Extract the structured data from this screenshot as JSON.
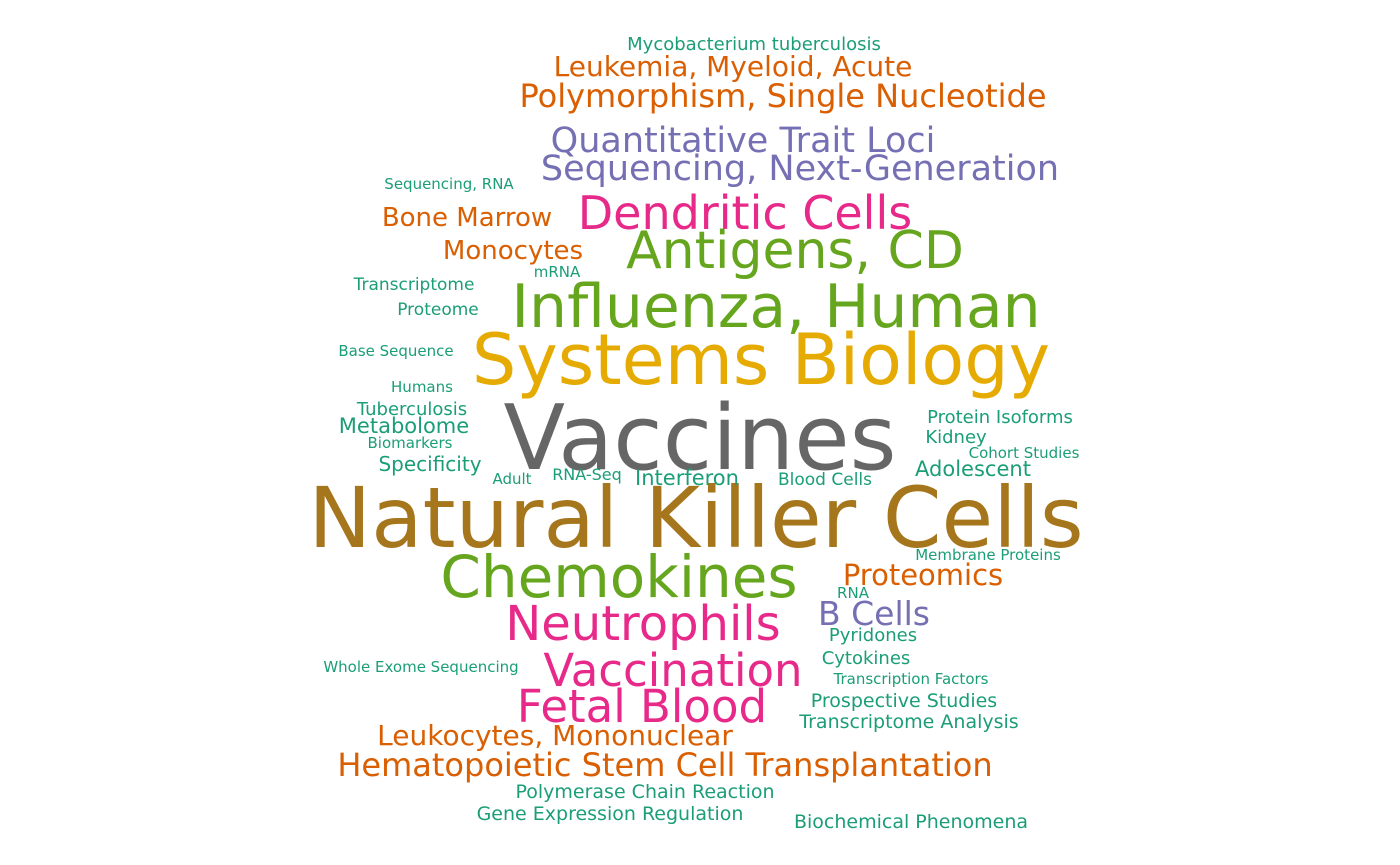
{
  "colors": {
    "teal": "#1b9e77",
    "orange": "#d95f02",
    "purple": "#7570b3",
    "pink": "#e7298a",
    "green": "#66a61e",
    "yellow": "#e6ab02",
    "brown": "#a6761d",
    "gray": "#666666"
  },
  "words": [
    {
      "text": "Natural Killer Cells",
      "color": "brown"
    },
    {
      "text": "Vaccines",
      "color": "gray"
    },
    {
      "text": "Systems Biology",
      "color": "yellow"
    },
    {
      "text": "Influenza, Human",
      "color": "green"
    },
    {
      "text": "Antigens, CD",
      "color": "green"
    },
    {
      "text": "Chemokines",
      "color": "green"
    },
    {
      "text": "Dendritic Cells",
      "color": "pink"
    },
    {
      "text": "Neutrophils",
      "color": "pink"
    },
    {
      "text": "Vaccination",
      "color": "pink"
    },
    {
      "text": "Fetal Blood",
      "color": "pink"
    },
    {
      "text": "Quantitative Trait Loci",
      "color": "purple"
    },
    {
      "text": "Sequencing, Next-Generation",
      "color": "purple"
    },
    {
      "text": "B Cells",
      "color": "purple"
    },
    {
      "text": "Polymorphism, Single Nucleotide",
      "color": "orange"
    },
    {
      "text": "Leukemia, Myeloid, Acute",
      "color": "orange"
    },
    {
      "text": "Hematopoietic Stem Cell Transplantation",
      "color": "orange"
    },
    {
      "text": "Leukocytes, Mononuclear",
      "color": "orange"
    },
    {
      "text": "Proteomics",
      "color": "orange"
    },
    {
      "text": "Bone Marrow",
      "color": "orange"
    },
    {
      "text": "Monocytes",
      "color": "orange"
    },
    {
      "text": "Mycobacterium tuberculosis",
      "color": "teal"
    },
    {
      "text": "Sequencing, RNA",
      "color": "teal"
    },
    {
      "text": "mRNA",
      "color": "teal"
    },
    {
      "text": "Transcriptome",
      "color": "teal"
    },
    {
      "text": "Proteome",
      "color": "teal"
    },
    {
      "text": "Base Sequence",
      "color": "teal"
    },
    {
      "text": "Humans",
      "color": "teal"
    },
    {
      "text": "Tuberculosis",
      "color": "teal"
    },
    {
      "text": "Metabolome",
      "color": "teal"
    },
    {
      "text": "Biomarkers",
      "color": "teal"
    },
    {
      "text": "Specificity",
      "color": "teal"
    },
    {
      "text": "Adult",
      "color": "teal"
    },
    {
      "text": "RNA-Seq",
      "color": "teal"
    },
    {
      "text": "Interferon",
      "color": "teal"
    },
    {
      "text": "Blood Cells",
      "color": "teal"
    },
    {
      "text": "Protein Isoforms",
      "color": "teal"
    },
    {
      "text": "Kidney",
      "color": "teal"
    },
    {
      "text": "Cohort Studies",
      "color": "teal"
    },
    {
      "text": "Adolescent",
      "color": "teal"
    },
    {
      "text": "Membrane Proteins",
      "color": "teal"
    },
    {
      "text": "RNA",
      "color": "teal"
    },
    {
      "text": "Pyridones",
      "color": "teal"
    },
    {
      "text": "Cytokines",
      "color": "teal"
    },
    {
      "text": "Transcription Factors",
      "color": "teal"
    },
    {
      "text": "Prospective Studies",
      "color": "teal"
    },
    {
      "text": "Transcriptome Analysis",
      "color": "teal"
    },
    {
      "text": "Whole Exome Sequencing",
      "color": "teal"
    },
    {
      "text": "Polymerase Chain Reaction",
      "color": "teal"
    },
    {
      "text": "Gene Expression Regulation",
      "color": "teal"
    },
    {
      "text": "Biochemical Phenomena",
      "color": "teal"
    }
  ]
}
